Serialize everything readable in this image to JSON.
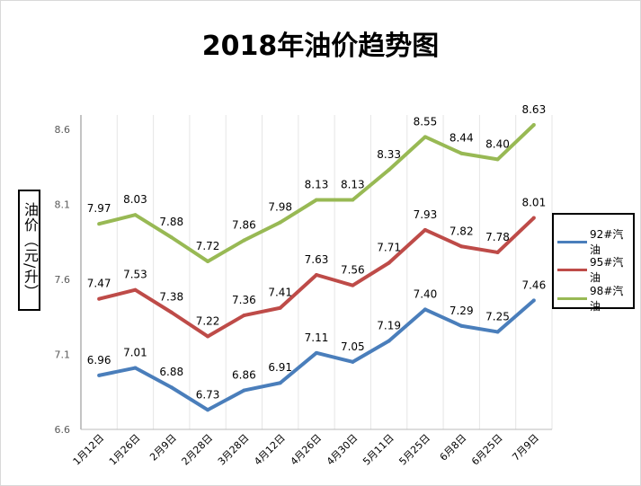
{
  "chart_data": {
    "type": "line",
    "title": "2018年油价趋势图",
    "ylabel": "油价（元/升）",
    "xlabel": "",
    "ylim": [
      6.6,
      8.6
    ],
    "yticks": [
      "6.6",
      "7.1",
      "7.6",
      "8.1",
      "8.6"
    ],
    "grid": "vertical",
    "legend": "right",
    "categories": [
      "1月12日",
      "1月26日",
      "2月9日",
      "2月28日",
      "3月28日",
      "4月12日",
      "4月26日",
      "4月30日",
      "5月11日",
      "5月25日",
      "6月8日",
      "6月25日",
      "7月9日"
    ],
    "series": [
      {
        "name": "92#汽油",
        "color": "#4a7ebb",
        "values": [
          6.96,
          7.01,
          6.88,
          6.73,
          6.86,
          6.91,
          7.11,
          7.05,
          7.19,
          7.4,
          7.29,
          7.25,
          7.46
        ]
      },
      {
        "name": "95#汽油",
        "color": "#be4b48",
        "values": [
          7.47,
          7.53,
          7.38,
          7.22,
          7.36,
          7.41,
          7.63,
          7.56,
          7.71,
          7.93,
          7.82,
          7.78,
          8.01
        ]
      },
      {
        "name": "98#汽油",
        "color": "#98b954",
        "values": [
          7.97,
          8.03,
          7.88,
          7.72,
          7.86,
          7.98,
          8.13,
          8.13,
          8.33,
          8.55,
          8.44,
          8.4,
          8.63
        ]
      }
    ]
  }
}
